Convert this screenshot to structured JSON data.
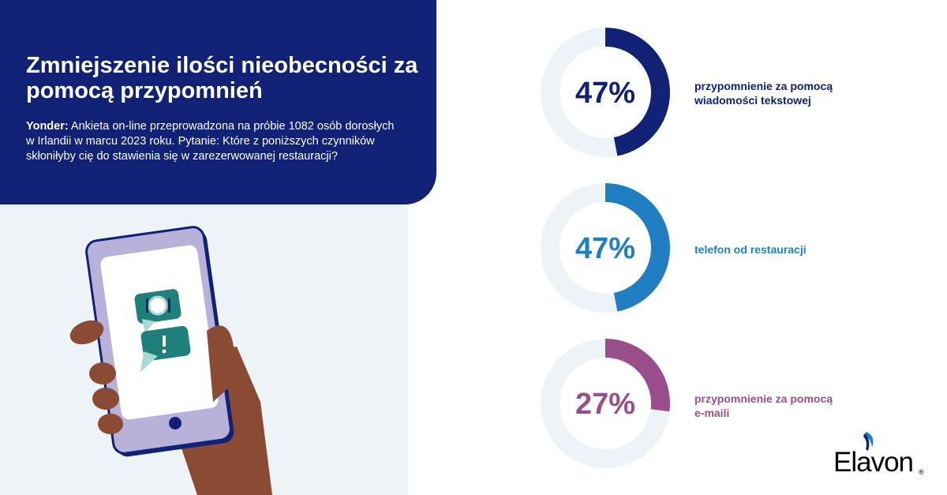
{
  "header": {
    "title": "Zmniejszenie ilości nieobecności za pomocą przypomnień",
    "survey_lead": "Yonder:",
    "survey_text": " Ankieta on-line przeprowadzona na próbie 1082 osób dorosłych w Irlandii w marcu 2023 roku. Pytanie: Które z poniższych czynników skłoniłyby cię do stawienia się w zarezerwowanej restauracji?"
  },
  "chart_data": {
    "type": "donut",
    "items": [
      {
        "value": 47,
        "value_label": "47%",
        "label": "przypomnienie za pomocą wiadomości tekstowej",
        "color": "#102176",
        "value_color": "#102176",
        "label_color": "#102176"
      },
      {
        "value": 47,
        "value_label": "47%",
        "label": "telefon od restauracji",
        "color": "#1f7fc2",
        "value_color": "#1f7fc2",
        "label_color": "#1f7fc2"
      },
      {
        "value": 27,
        "value_label": "27%",
        "label": "przypomnienie za pomocą e-maili",
        "color": "#9a4f8c",
        "value_color": "#9a4f8c",
        "label_color": "#9a4f8c"
      }
    ],
    "track_color": "#eef3f8"
  },
  "illustration": {
    "icons": [
      "phone-icon",
      "hand-icon",
      "plate-cutlery-icon",
      "exclamation-icon"
    ],
    "colors": {
      "phone_body": "#b8b2da",
      "phone_outline": "#102176",
      "screen": "#ffffff",
      "bubble": "#1f7f7b",
      "skin": "#8a4a33"
    }
  },
  "logo": {
    "text": "Elavon",
    "registered": "®"
  }
}
